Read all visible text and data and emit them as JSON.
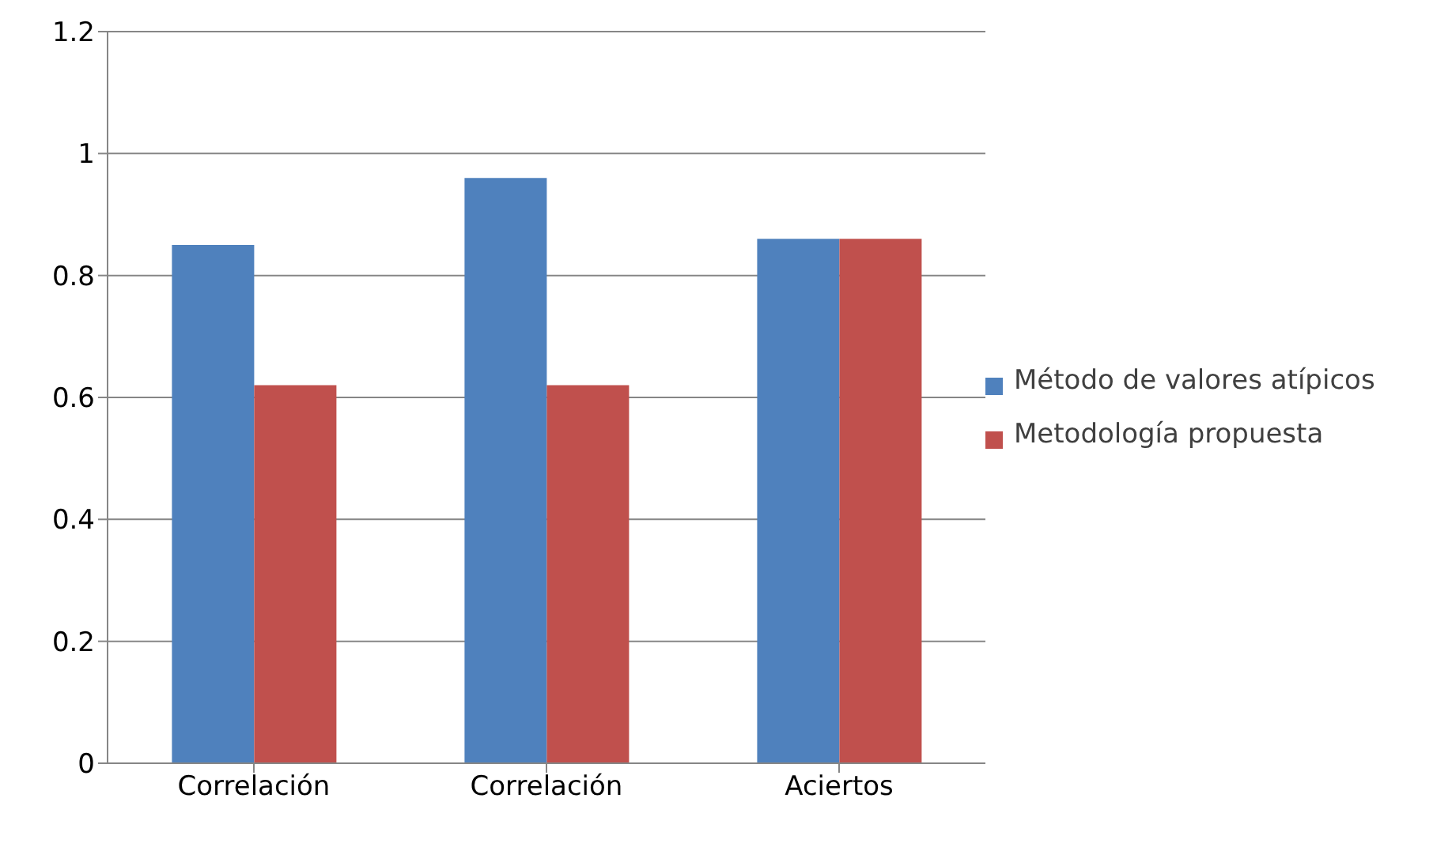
{
  "chart_data": {
    "type": "bar",
    "categories": [
      "Correlación",
      "Correlación",
      "Aciertos"
    ],
    "series": [
      {
        "name": "Método de valores atípicos",
        "color": "#4f81bd",
        "values": [
          0.85,
          0.96,
          0.86
        ]
      },
      {
        "name": "Metodología propuesta",
        "color": "#c0504d",
        "values": [
          0.62,
          0.62,
          0.86
        ]
      }
    ],
    "ylim": [
      0,
      1.2
    ],
    "yticks": [
      0,
      0.2,
      0.4,
      0.6,
      0.8,
      1,
      1.2
    ],
    "grid": "y",
    "legend": "right"
  }
}
